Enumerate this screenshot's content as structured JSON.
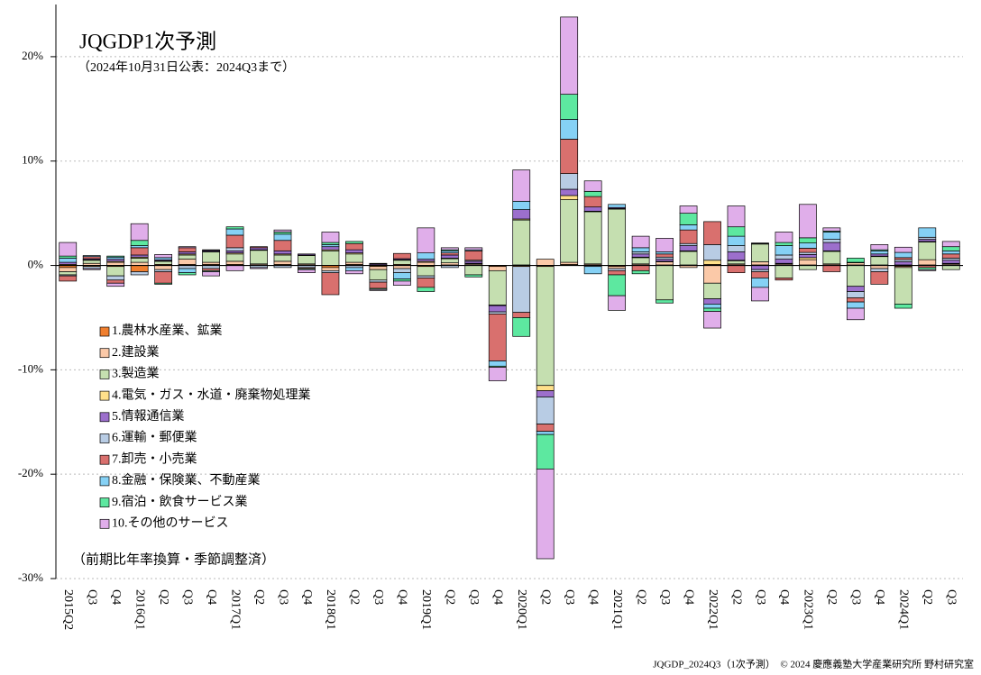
{
  "chart_data": {
    "type": "stacked_bar",
    "title": "JQGDP1次予測",
    "subtitle": "（2024年10月31日公表：2024Q3まで）",
    "annotation": "（前期比年率換算・季節調整済）",
    "source": "JQGDP_2024Q3（1次予測）　© 2024 慶應義塾大学産業研究所 野村研究室",
    "categories": [
      "2015Q2",
      "Q3",
      "Q4",
      "2016Q1",
      "Q2",
      "Q3",
      "Q4",
      "2017Q1",
      "Q2",
      "Q3",
      "Q4",
      "2018Q1",
      "Q2",
      "Q3",
      "Q4",
      "2019Q1",
      "Q2",
      "Q3",
      "Q4",
      "2020Q1",
      "Q2",
      "Q3",
      "Q4",
      "2021Q1",
      "Q2",
      "Q3",
      "Q4",
      "2022Q1",
      "Q2",
      "Q3",
      "Q4",
      "2023Q1",
      "Q2",
      "Q3",
      "Q4",
      "2024Q1",
      "Q2",
      "Q3"
    ],
    "ylim": [
      -30,
      25
    ],
    "yticks": [
      {
        "value": -30,
        "label": "-30%"
      },
      {
        "value": -20,
        "label": "-20%"
      },
      {
        "value": -10,
        "label": "-10%"
      },
      {
        "value": 0,
        "label": "0%"
      },
      {
        "value": 10,
        "label": "10%"
      },
      {
        "value": 20,
        "label": "20%"
      }
    ],
    "grid": true,
    "series": [
      {
        "name": "1.農林水産業、鉱業",
        "color": "#f07f2f",
        "values": [
          -0.2,
          -0.1,
          -0.1,
          -0.6,
          0.1,
          0.1,
          0.1,
          0.1,
          0.05,
          0.1,
          0.05,
          -0.2,
          0.1,
          -0.1,
          0.1,
          -0.1,
          0.05,
          0.05,
          -0.1,
          -0.1,
          -0.1,
          0.1,
          0.05,
          -0.1,
          0.05,
          0.05,
          0.05,
          0.1,
          0.05,
          0.05,
          0.05,
          0.05,
          0.05,
          0.05,
          0.05,
          -0.1,
          0.05,
          0.05
        ]
      },
      {
        "name": "2.建設業",
        "color": "#fbc9a8",
        "values": [
          -0.4,
          0.2,
          0.3,
          0.3,
          -0.4,
          0.5,
          0.2,
          0.3,
          0.1,
          0.3,
          0.1,
          -0.3,
          0.2,
          -0.3,
          -0.3,
          0.3,
          0.2,
          0.1,
          -0.4,
          0.05,
          0.6,
          0.2,
          0.1,
          -0.2,
          0.1,
          0.3,
          -0.2,
          -1.7,
          0.1,
          0.3,
          0.1,
          0.5,
          0.1,
          0.2,
          -0.3,
          -0.1,
          0.5,
          0.1
        ]
      },
      {
        "name": "3.製造業",
        "color": "#c5dfb0",
        "values": [
          -0.3,
          0.3,
          -0.9,
          0.4,
          0.3,
          0.4,
          1.0,
          0.7,
          1.3,
          0.6,
          0.8,
          1.4,
          0.8,
          -1.0,
          0.4,
          -0.9,
          0.4,
          -0.9,
          -3.3,
          4.3,
          -11.4,
          6.0,
          5.0,
          5.4,
          0.6,
          -3.3,
          1.3,
          -1.5,
          0.3,
          1.7,
          -1.2,
          -0.4,
          1.2,
          -2.0,
          0.8,
          -3.5,
          1.7,
          -0.4
        ]
      },
      {
        "name": "4.電気・ガス・水道・廃棄物処理業",
        "color": "#ffe08a",
        "values": [
          0.1,
          0.05,
          0.1,
          0.1,
          0.05,
          0.1,
          0.05,
          0.1,
          0.05,
          0.1,
          0.05,
          0.1,
          0.1,
          0.05,
          0.05,
          0.1,
          0.05,
          0.05,
          -0.05,
          0.1,
          -0.5,
          0.4,
          0.05,
          0.05,
          0.05,
          0.05,
          0.05,
          0.4,
          0.05,
          0.05,
          0.05,
          0.2,
          0.05,
          0.05,
          0.05,
          0.05,
          0.05,
          0.05
        ]
      },
      {
        "name": "5.情報通信業",
        "color": "#9c6fcc",
        "values": [
          0.2,
          0.1,
          0.2,
          0.2,
          0.1,
          0.2,
          0.1,
          0.2,
          0.2,
          0.3,
          0.1,
          0.3,
          0.3,
          0.1,
          0.1,
          0.2,
          0.3,
          0.2,
          -0.6,
          0.9,
          -0.6,
          0.6,
          0.4,
          0.1,
          0.3,
          0.2,
          0.5,
          -0.5,
          0.8,
          -0.4,
          0.4,
          0.3,
          0.8,
          -0.5,
          0.2,
          0.3,
          0.2,
          0.3
        ]
      },
      {
        "name": "6.運輸・郵便業",
        "color": "#b8cce4",
        "values": [
          -0.1,
          -0.2,
          -0.4,
          -0.3,
          -0.2,
          -0.3,
          -0.3,
          0.3,
          -0.2,
          -0.2,
          -0.2,
          -0.2,
          -0.2,
          -0.2,
          -0.4,
          -0.2,
          -0.2,
          0.1,
          -0.2,
          -4.4,
          -2.6,
          1.5,
          -0.1,
          -0.2,
          0.2,
          0.2,
          0.2,
          1.5,
          0.6,
          -0.2,
          0.4,
          0.2,
          0.3,
          -0.6,
          -0.3,
          0.2,
          0.2,
          0.2
        ]
      },
      {
        "name": "7.卸売・小売業",
        "color": "#d9706e",
        "values": [
          -0.5,
          0.2,
          -0.3,
          0.7,
          -1.1,
          0.4,
          -0.2,
          1.2,
          0.1,
          1.0,
          -0.1,
          -2.1,
          0.6,
          -0.6,
          0.5,
          -0.9,
          0.2,
          0.9,
          -4.5,
          -0.5,
          -0.7,
          3.3,
          1.0,
          -0.4,
          -0.5,
          0.3,
          1.3,
          2.2,
          -0.7,
          -0.6,
          -0.2,
          0.4,
          -0.6,
          -0.4,
          -1.2,
          0.2,
          -0.2,
          0.4
        ]
      },
      {
        "name": "8.金融・保険業、不動産業",
        "color": "#85d1f5",
        "values": [
          0.4,
          0.1,
          0.2,
          0.2,
          0.2,
          -0.4,
          0.05,
          0.6,
          0.0,
          0.6,
          0.0,
          0.2,
          -0.3,
          0.05,
          -0.6,
          0.6,
          0.2,
          0.1,
          -0.5,
          0.8,
          -0.3,
          1.9,
          -0.7,
          0.3,
          0.4,
          0.2,
          0.5,
          -0.4,
          0.9,
          -0.9,
          0.9,
          0.5,
          0.7,
          -0.6,
          0.3,
          0.5,
          0.9,
          0.3
        ]
      },
      {
        "name": "9.宿泊・飲食サービス業",
        "color": "#5de8a0",
        "values": [
          0.2,
          0.0,
          0.1,
          0.5,
          -0.1,
          -0.2,
          -0.1,
          0.2,
          0.0,
          0.2,
          -0.1,
          0.2,
          0.2,
          -0.1,
          -0.2,
          -0.4,
          0.1,
          -0.2,
          -0.1,
          -1.8,
          -3.3,
          2.4,
          0.5,
          -2.0,
          -0.3,
          -0.3,
          1.1,
          -0.3,
          0.9,
          0.05,
          0.3,
          0.5,
          0.1,
          0.4,
          0.1,
          -0.4,
          -0.2,
          0.4
        ]
      },
      {
        "name": "10.その他のサービス",
        "color": "#e0aeea",
        "values": [
          1.3,
          -0.1,
          -0.3,
          1.6,
          0.3,
          0.1,
          -0.4,
          -0.5,
          -0.1,
          0.2,
          -0.3,
          1.0,
          -0.3,
          -0.1,
          -0.4,
          2.4,
          0.2,
          0.2,
          -1.3,
          3.0,
          -8.6,
          7.4,
          1.0,
          -1.4,
          1.1,
          1.3,
          0.7,
          -1.6,
          2.0,
          -1.3,
          1.0,
          3.2,
          0.3,
          -1.1,
          0.5,
          0.5,
          -0.1,
          0.5
        ]
      }
    ]
  }
}
